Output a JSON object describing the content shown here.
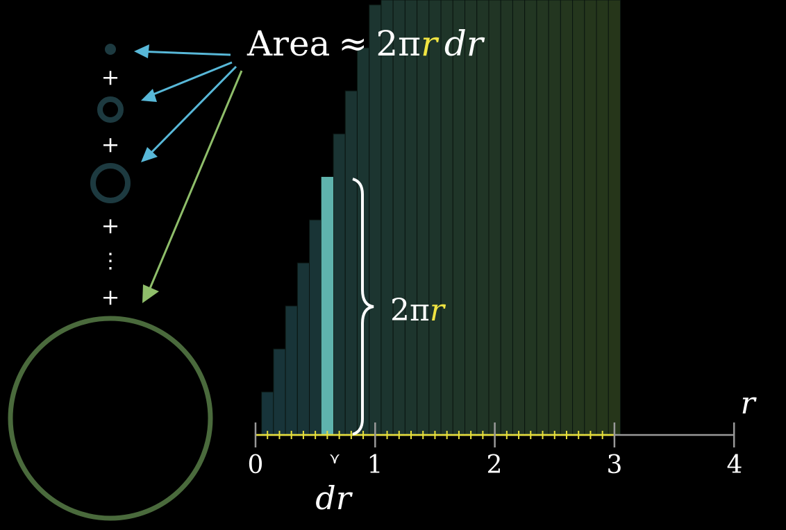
{
  "formula": {
    "area_word": "Area",
    "approx": "≈",
    "two_pi": "2π",
    "r": "r",
    "dr": "dr"
  },
  "plus_signs": [
    "+",
    "+",
    "+",
    "+"
  ],
  "ellipsis": "⋮",
  "brace_label": {
    "two_pi": "2π",
    "r": "r"
  },
  "axis": {
    "variable_label": "r",
    "ticks": [
      "0",
      "1",
      "2",
      "3",
      "4"
    ],
    "dr_label": "dr",
    "dr_marker": "⋎"
  },
  "colors": {
    "background": "#000000",
    "text": "#ffffff",
    "highlight_r": "#f0e442",
    "ring_small": "#1d3a40",
    "ring_large": "#4a6a3c",
    "arrow_blue": "#58b8d8",
    "arrow_green": "#8fbe6a",
    "bar_fill_start": "#17343a",
    "bar_fill_end": "#26361a",
    "highlighted_bar": "#5fb3ad",
    "axis_line": "#999999",
    "axis_ticks_yellow": "#e8e03a"
  },
  "chart_data": {
    "type": "bar",
    "function": "2πr",
    "dr": 0.1,
    "x_range": [
      0,
      4
    ],
    "bars_from": 0.1,
    "bars_to": 3.0,
    "highlighted_bar_r": 0.6,
    "x_ticks": [
      0,
      1,
      2,
      3,
      4
    ]
  }
}
